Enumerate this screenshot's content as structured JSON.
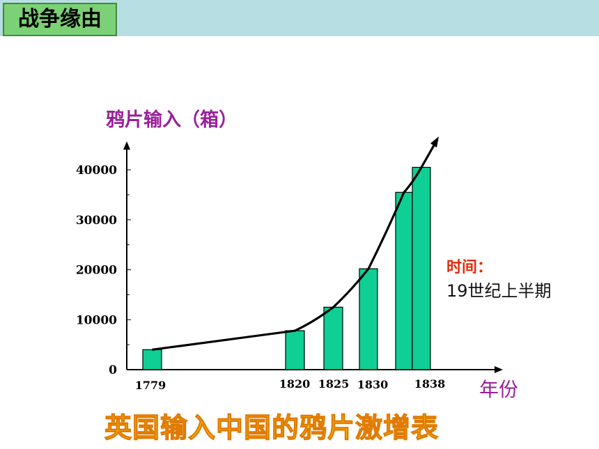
{
  "header": {
    "section_title": "战争缘由"
  },
  "chart_data": {
    "type": "bar",
    "title": "英国输入中国的鸦片激增表",
    "ylabel": "鸦片输入（箱）",
    "xlabel": "年份",
    "categories": [
      "1779",
      "1820",
      "1825",
      "1830",
      "",
      "1838"
    ],
    "values": [
      4000,
      7800,
      12500,
      20200,
      35500,
      40500
    ],
    "trend_line": true,
    "y_ticks": [
      "0",
      "10000",
      "20000",
      "30000",
      "40000"
    ],
    "ylim": [
      0,
      45000
    ],
    "colors": {
      "bar": "#0fcf94",
      "bar_edge": "#000000",
      "line": "#000000"
    }
  },
  "annotation": {
    "label": "时间：",
    "value": "19世纪上半期"
  }
}
